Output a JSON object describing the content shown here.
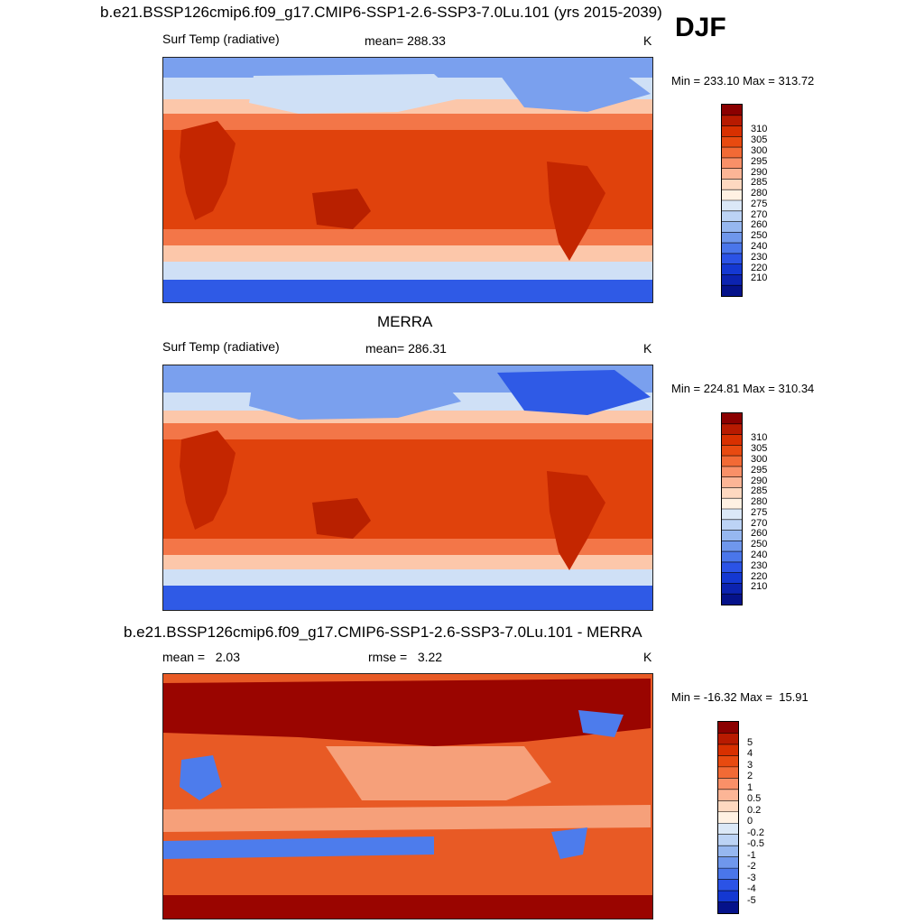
{
  "season": "DJF",
  "panels": [
    {
      "title": "b.e21.BSSP126cmip6.f09_g17.CMIP6-SSP1-2.6-SSP3-7.0Lu.101 (yrs 2015-2039)",
      "variable": "Surf Temp (radiative)",
      "stat": "mean= 288.33",
      "units": "K",
      "minmax": "Min = 233.10 Max = 313.72",
      "colorbar_labels": [
        "310",
        "305",
        "300",
        "295",
        "290",
        "285",
        "280",
        "275",
        "270",
        "260",
        "250",
        "240",
        "230",
        "220",
        "210"
      ],
      "colorbar_colors": [
        "#8b0000",
        "#b81a00",
        "#d83000",
        "#e84a10",
        "#f26a35",
        "#f99068",
        "#fcb596",
        "#fed8c0",
        "#fff1e3",
        "#dbe8f7",
        "#bcd3f5",
        "#96b7f0",
        "#6f97ec",
        "#4a76ea",
        "#2b53e6",
        "#1438d2",
        "#0c23b0",
        "#05128a"
      ]
    },
    {
      "title": "MERRA",
      "variable": "Surf Temp (radiative)",
      "stat": "mean= 286.31",
      "units": "K",
      "minmax": "Min = 224.81 Max = 310.34",
      "colorbar_labels": [
        "310",
        "305",
        "300",
        "295",
        "290",
        "285",
        "280",
        "275",
        "270",
        "260",
        "250",
        "240",
        "230",
        "220",
        "210"
      ],
      "colorbar_colors": [
        "#8b0000",
        "#b81a00",
        "#d83000",
        "#e84a10",
        "#f26a35",
        "#f99068",
        "#fcb596",
        "#fed8c0",
        "#fff1e3",
        "#dbe8f7",
        "#bcd3f5",
        "#96b7f0",
        "#6f97ec",
        "#4a76ea",
        "#2b53e6",
        "#1438d2",
        "#0c23b0",
        "#05128a"
      ]
    },
    {
      "title": "b.e21.BSSP126cmip6.f09_g17.CMIP6-SSP1-2.6-SSP3-7.0Lu.101 - MERRA",
      "stat_mean": "mean =   2.03",
      "stat_rmse": "rmse =   3.22",
      "units": "K",
      "minmax": "Min = -16.32 Max =  15.91",
      "colorbar_labels": [
        "5",
        "4",
        "3",
        "2",
        "1",
        "0.5",
        "0.2",
        "0",
        "-0.2",
        "-0.5",
        "-1",
        "-2",
        "-3",
        "-4",
        "-5"
      ],
      "colorbar_colors": [
        "#8b0000",
        "#b81a00",
        "#d83000",
        "#e84a10",
        "#f26a35",
        "#f99068",
        "#fcb596",
        "#fed8c0",
        "#fff1e3",
        "#dbe8f7",
        "#bcd3f5",
        "#96b7f0",
        "#6f97ec",
        "#4a76ea",
        "#2b53e6",
        "#1438d2",
        "#05128a"
      ]
    }
  ],
  "map_colors": {
    "hot": "#c42600",
    "warm": "#e0420c",
    "mild": "#f37648",
    "cool": "#fcc7aa",
    "pale": "#fff1e3",
    "coldlight": "#cfe0f6",
    "cold": "#7aa0ee",
    "vcold": "#2f5ae6",
    "land": "#b82000",
    "diffpos": "#e85a25",
    "diffstrong": "#9a0500",
    "diffneg": "#4d7cec",
    "difflight": "#f6a07a"
  }
}
